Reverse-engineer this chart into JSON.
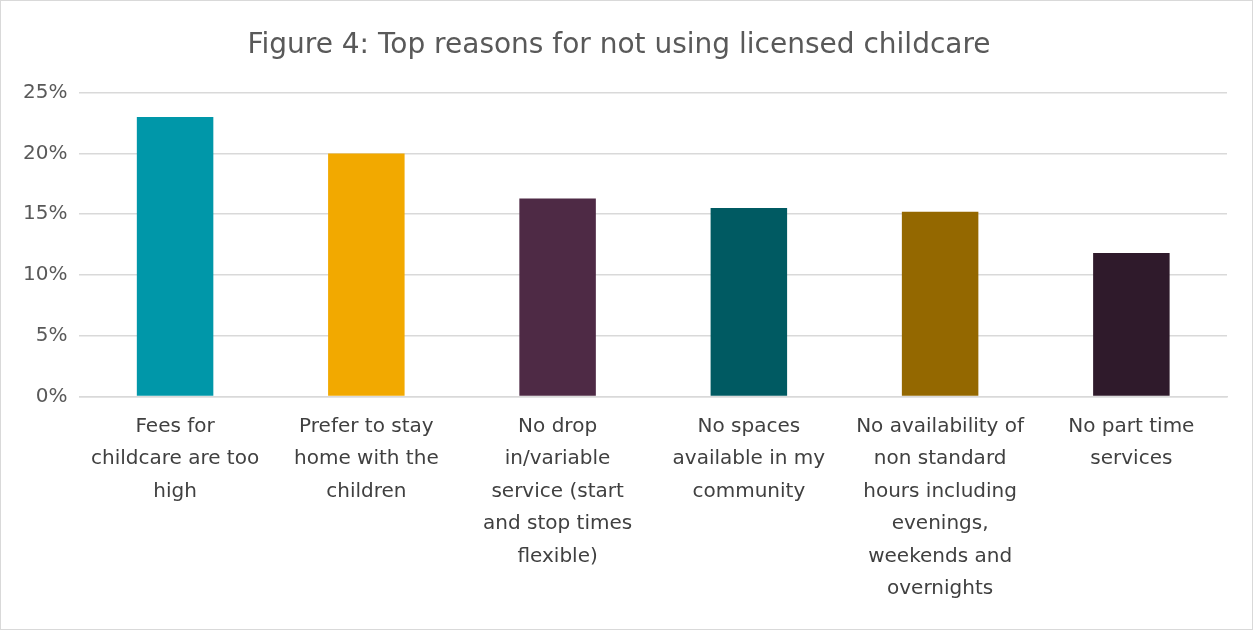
{
  "chart_data": {
    "type": "bar",
    "title": "Figure 4: Top reasons for not using licensed childcare",
    "categories": [
      "Fees for childcare are too high",
      "Prefer to stay home with the children",
      "No drop in/variable service (start and stop times flexible)",
      "No spaces available in my community",
      "No availability of non standard hours including evenings, weekends and overnights",
      "No part time services"
    ],
    "values": [
      23,
      20,
      16.3,
      15.5,
      15.2,
      11.8
    ],
    "colors": [
      "#0097a9",
      "#f2a900",
      "#4e2a45",
      "#005a62",
      "#946800",
      "#2f1a2b"
    ],
    "ylim": [
      0,
      25
    ],
    "yticks": [
      {
        "value": 0,
        "label": "0%"
      },
      {
        "value": 5,
        "label": "5%"
      },
      {
        "value": 10,
        "label": "10%"
      },
      {
        "value": 15,
        "label": "15%"
      },
      {
        "value": 20,
        "label": "20%"
      },
      {
        "value": 25,
        "label": "25%"
      }
    ],
    "grid": "y",
    "legend": false
  }
}
